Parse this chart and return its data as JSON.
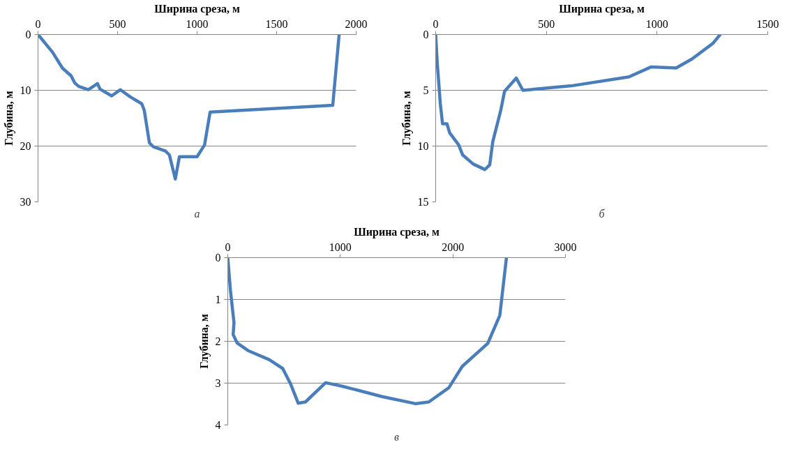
{
  "chart_data": [
    {
      "type": "line",
      "xlabel": "Ширина среза, м",
      "ylabel": "Глубина, м",
      "annotations": [
        "а"
      ],
      "xlim": [
        0,
        2000
      ],
      "xticks": [
        0,
        500,
        1000,
        1500,
        2000
      ],
      "ylim": [
        30,
        0
      ],
      "yticks": [
        0,
        10,
        20,
        30
      ],
      "grid": "y",
      "line_style": "solid",
      "x": [
        0,
        92,
        153,
        208,
        231,
        256,
        316,
        374,
        390,
        463,
        518,
        581,
        652,
        668,
        700,
        724,
        802,
        826,
        863,
        889,
        1000,
        1047,
        1082,
        1853,
        1893
      ],
      "series": [
        {
          "color": "#4a7ebb",
          "values": [
            0,
            3.2,
            6.0,
            7.4,
            8.7,
            9.3,
            9.9,
            8.8,
            9.8,
            11.0,
            9.9,
            11.2,
            12.4,
            13.6,
            19.4,
            20.1,
            20.9,
            21.6,
            25.9,
            21.9,
            21.9,
            19.8,
            13.9,
            12.7,
            0
          ]
        }
      ]
    },
    {
      "type": "line",
      "xlabel": "Ширина среза, м",
      "ylabel": "Глубина, м",
      "annotations": [
        "б"
      ],
      "xlim": [
        0,
        1500
      ],
      "xticks": [
        0,
        500,
        1000,
        1500
      ],
      "ylim": [
        15,
        0
      ],
      "yticks": [
        0,
        5,
        10,
        15
      ],
      "grid": "y",
      "line_style": "solid",
      "x": [
        0,
        7,
        21,
        31,
        51,
        63,
        104,
        122,
        169,
        222,
        244,
        258,
        294,
        311,
        364,
        394,
        613,
        873,
        974,
        1086,
        1157,
        1252,
        1285
      ],
      "series": [
        {
          "color": "#4a7ebb",
          "values": [
            0,
            2.5,
            6.2,
            8.0,
            8.0,
            8.8,
            9.9,
            10.8,
            11.6,
            12.1,
            11.7,
            9.6,
            6.8,
            5.1,
            3.9,
            5.0,
            4.6,
            3.8,
            2.9,
            3.0,
            2.2,
            0.8,
            0
          ]
        }
      ]
    },
    {
      "type": "line",
      "xlabel": "Ширина среза, м",
      "ylabel": "Глубина, м",
      "annotations": [
        "в"
      ],
      "xlim": [
        0,
        3000
      ],
      "xticks": [
        0,
        1000,
        2000,
        3000
      ],
      "ylim": [
        4,
        0
      ],
      "yticks": [
        0,
        1,
        2,
        3,
        4
      ],
      "grid": "y",
      "line_style": "solid",
      "x": [
        0,
        24,
        55,
        48,
        83,
        179,
        369,
        488,
        560,
        626,
        690,
        869,
        1012,
        1369,
        1667,
        1786,
        1964,
        2083,
        2310,
        2417,
        2476
      ],
      "series": [
        {
          "color": "#4a7ebb",
          "values": [
            0,
            0.79,
            1.55,
            1.84,
            2.04,
            2.22,
            2.44,
            2.65,
            3.03,
            3.48,
            3.45,
            2.99,
            3.07,
            3.32,
            3.49,
            3.45,
            3.11,
            2.6,
            2.05,
            1.38,
            0
          ]
        }
      ]
    }
  ]
}
